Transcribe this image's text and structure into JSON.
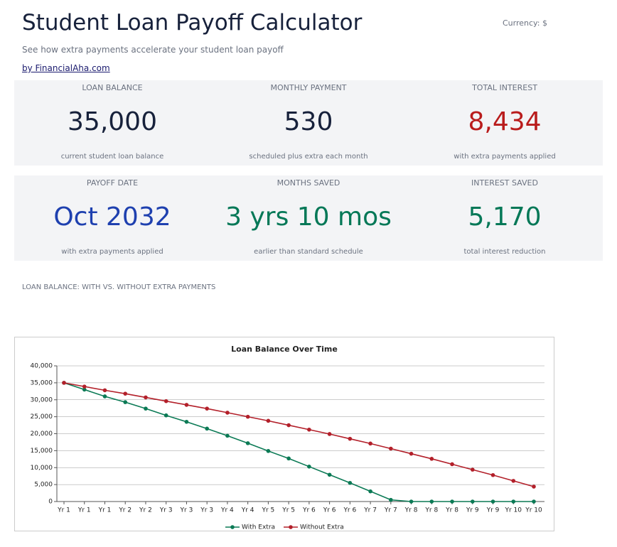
{
  "header": {
    "title": "Student Loan Payoff Calculator",
    "currency": "Currency: $",
    "subtitle": "See how extra payments accelerate your student loan payoff",
    "link": "by FinancialAha.com"
  },
  "cards": [
    [
      {
        "label": "LOAN BALANCE",
        "value": "35,000",
        "note": "current student loan balance",
        "color": "#17213b"
      },
      {
        "label": "MONTHLY PAYMENT",
        "value": "530",
        "note": "scheduled plus extra each month",
        "color": "#17213b"
      },
      {
        "label": "TOTAL INTEREST",
        "value": "8,434",
        "note": "with extra payments applied",
        "color": "#b91c1c"
      }
    ],
    [
      {
        "label": "PAYOFF DATE",
        "value": "Oct 2032",
        "note": "with extra payments applied",
        "color": "#1e40af"
      },
      {
        "label": "MONTHS SAVED",
        "value": "3 yrs 10 mos",
        "note": "earlier than standard schedule",
        "color": "#047857"
      },
      {
        "label": "INTEREST SAVED",
        "value": "5,170",
        "note": "total interest reduction",
        "color": "#047857"
      }
    ]
  ],
  "section_label": "LOAN BALANCE: WITH VS. WITHOUT EXTRA PAYMENTS",
  "chart_data": {
    "type": "line",
    "title": "Loan Balance Over Time",
    "categories": [
      "Yr 1",
      "Yr 1",
      "Yr 1",
      "Yr 2",
      "Yr 2",
      "Yr 3",
      "Yr 3",
      "Yr 3",
      "Yr 4",
      "Yr 4",
      "Yr 5",
      "Yr 5",
      "Yr 6",
      "Yr 6",
      "Yr 6",
      "Yr 7",
      "Yr 7",
      "Yr 8",
      "Yr 8",
      "Yr 8",
      "Yr 9",
      "Yr 9",
      "Yr 10",
      "Yr 10"
    ],
    "series": [
      {
        "name": "With Extra",
        "color": "#0b7a55",
        "values": [
          35000,
          33000,
          31000,
          29300,
          27400,
          25400,
          23500,
          21500,
          19400,
          17200,
          14900,
          12700,
          10300,
          7900,
          5500,
          3000,
          500,
          0,
          0,
          0,
          0,
          0,
          0,
          0
        ]
      },
      {
        "name": "Without Extra",
        "color": "#b3202a",
        "values": [
          35000,
          33900,
          32800,
          31800,
          30700,
          29600,
          28500,
          27400,
          26200,
          25000,
          23800,
          22500,
          21200,
          19900,
          18500,
          17100,
          15600,
          14100,
          12600,
          11000,
          9400,
          7800,
          6100,
          4400
        ]
      }
    ],
    "ylim": [
      0,
      40000
    ],
    "yticks": [
      0,
      {
        "value": 5000,
        "label": "5,000"
      },
      {
        "value": 10000,
        "label": "10,000"
      },
      {
        "value": 15000,
        "label": "15,000"
      },
      {
        "value": 20000,
        "label": "20,000"
      },
      {
        "value": 25000,
        "label": "25,000"
      },
      {
        "value": 30000,
        "label": "30,000"
      },
      {
        "value": 35000,
        "label": "35,000"
      },
      {
        "value": 40000,
        "label": "40,000"
      }
    ],
    "grid": true,
    "legend": "bottom"
  }
}
